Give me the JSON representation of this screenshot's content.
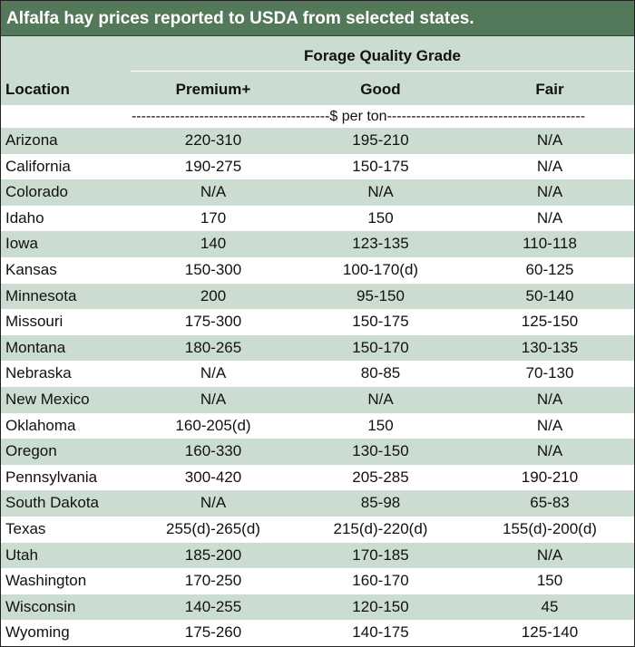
{
  "title": "Alfalfa hay prices reported to USDA from selected states.",
  "header": {
    "group": "Forage Quality Grade",
    "location": "Location",
    "premium": "Premium+",
    "good": "Good",
    "fair": "Fair"
  },
  "unit": "-----------------------------------------$ per ton-----------------------------------------",
  "rows": [
    {
      "location": "Arizona",
      "premium": "220-310",
      "good": "195-210",
      "fair": "N/A"
    },
    {
      "location": "California",
      "premium": "190-275",
      "good": "150-175",
      "fair": "N/A"
    },
    {
      "location": "Colorado",
      "premium": "N/A",
      "good": "N/A",
      "fair": "N/A"
    },
    {
      "location": "Idaho",
      "premium": "170",
      "good": "150",
      "fair": "N/A"
    },
    {
      "location": "Iowa",
      "premium": "140",
      "good": "123-135",
      "fair": "110-118"
    },
    {
      "location": "Kansas",
      "premium": "150-300",
      "good": "100-170(d)",
      "fair": "60-125"
    },
    {
      "location": "Minnesota",
      "premium": "200",
      "good": "95-150",
      "fair": "50-140"
    },
    {
      "location": "Missouri",
      "premium": "175-300",
      "good": "150-175",
      "fair": "125-150"
    },
    {
      "location": "Montana",
      "premium": "180-265",
      "good": "150-170",
      "fair": "130-135"
    },
    {
      "location": "Nebraska",
      "premium": "N/A",
      "good": "80-85",
      "fair": "70-130"
    },
    {
      "location": "New Mexico",
      "premium": "N/A",
      "good": "N/A",
      "fair": "N/A"
    },
    {
      "location": "Oklahoma",
      "premium": "160-205(d)",
      "good": "150",
      "fair": "N/A"
    },
    {
      "location": "Oregon",
      "premium": "160-330",
      "good": "130-150",
      "fair": "N/A"
    },
    {
      "location": "Pennsylvania",
      "premium": "300-420",
      "good": "205-285",
      "fair": "190-210"
    },
    {
      "location": "South Dakota",
      "premium": "N/A",
      "good": "85-98",
      "fair": "65-83"
    },
    {
      "location": "Texas",
      "premium": "255(d)-265(d)",
      "good": "215(d)-220(d)",
      "fair": "155(d)-200(d)"
    },
    {
      "location": "Utah",
      "premium": "185-200",
      "good": "170-185",
      "fair": "N/A"
    },
    {
      "location": "Washington",
      "premium": "170-250",
      "good": "160-170",
      "fair": "150"
    },
    {
      "location": "Wisconsin",
      "premium": "140-255",
      "good": "120-150",
      "fair": "45"
    },
    {
      "location": "Wyoming",
      "premium": "175-260",
      "good": "140-175",
      "fair": "125-140"
    }
  ],
  "colors": {
    "title_bg": "#53795a",
    "band": "#cbdcd0",
    "text": "#111111"
  }
}
